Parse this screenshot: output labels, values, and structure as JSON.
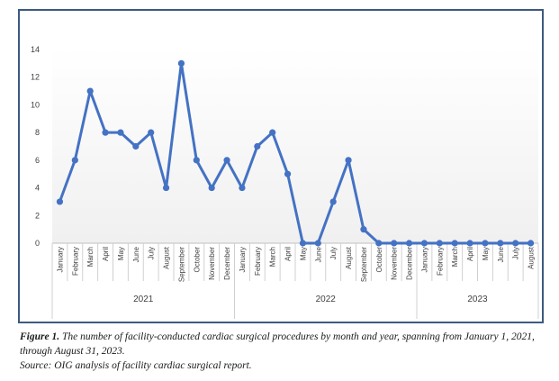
{
  "chart_data": {
    "type": "line",
    "title": "",
    "xlabel": "",
    "ylabel": "",
    "ylim": [
      0,
      14
    ],
    "yticks": [
      0,
      2,
      4,
      6,
      8,
      10,
      12,
      14
    ],
    "grid": false,
    "legend": "none",
    "line_color": "#4472c4",
    "groups": [
      {
        "year": "2021",
        "months": [
          "January",
          "February",
          "March",
          "April",
          "May",
          "June",
          "July",
          "August",
          "September",
          "October",
          "November",
          "December"
        ],
        "values": [
          3,
          6,
          11,
          8,
          8,
          7,
          8,
          4,
          13,
          6,
          4,
          6
        ]
      },
      {
        "year": "2022",
        "months": [
          "January",
          "February",
          "March",
          "April",
          "May",
          "June",
          "July",
          "August",
          "September",
          "October",
          "November",
          "December"
        ],
        "values": [
          4,
          7,
          8,
          5,
          0,
          0,
          3,
          6,
          1,
          0,
          0,
          0
        ]
      },
      {
        "year": "2023",
        "months": [
          "January",
          "February",
          "March",
          "April",
          "May",
          "June",
          "July",
          "August"
        ],
        "values": [
          0,
          0,
          0,
          0,
          0,
          0,
          0,
          0
        ]
      }
    ]
  },
  "caption": {
    "label": "Figure 1.",
    "text": "The number of facility-conducted cardiac surgical procedures by month and year, spanning from January 1, 2021, through August 31, 2023.",
    "source": "Source: OIG analysis of facility cardiac surgical report."
  }
}
